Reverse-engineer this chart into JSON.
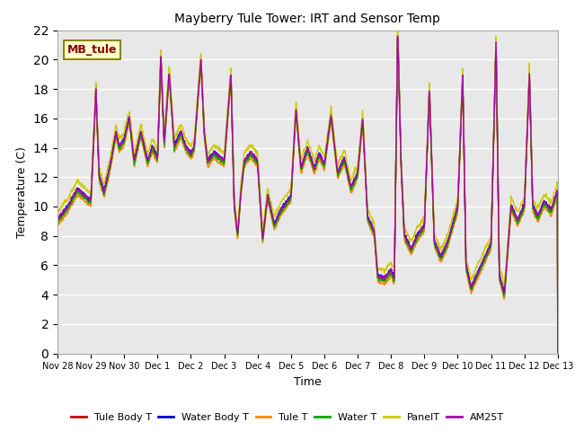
{
  "title": "Mayberry Tule Tower: IRT and Sensor Temp",
  "xlabel": "Time",
  "ylabel": "Temperature (C)",
  "ylim": [
    0,
    22
  ],
  "yticks": [
    0,
    2,
    4,
    6,
    8,
    10,
    12,
    14,
    16,
    18,
    20,
    22
  ],
  "plot_bg_color": "#e8e8e8",
  "grid_color": "white",
  "series": {
    "Tule Body T": {
      "color": "#cc0000",
      "lw": 1.0
    },
    "Water Body T": {
      "color": "#0000cc",
      "lw": 1.0
    },
    "Tule T": {
      "color": "#ff8800",
      "lw": 1.0
    },
    "Water T": {
      "color": "#00aa00",
      "lw": 1.0
    },
    "PanelT": {
      "color": "#cccc00",
      "lw": 1.0
    },
    "AM25T": {
      "color": "#aa00aa",
      "lw": 1.0
    }
  },
  "legend_label": "MB_tule",
  "legend_bg": "#ffffcc",
  "legend_edge": "#888800",
  "tick_labels": [
    "Nov 28",
    "Nov 29",
    "Nov 30",
    "Dec 1",
    "Dec 2",
    "Dec 3",
    "Dec 4",
    "Dec 5",
    "Dec 6",
    "Dec 7",
    "Dec 8",
    "Dec 9",
    "Dec 10",
    "Dec 11",
    "Dec 12",
    "Dec 13"
  ],
  "n_points": 1500
}
